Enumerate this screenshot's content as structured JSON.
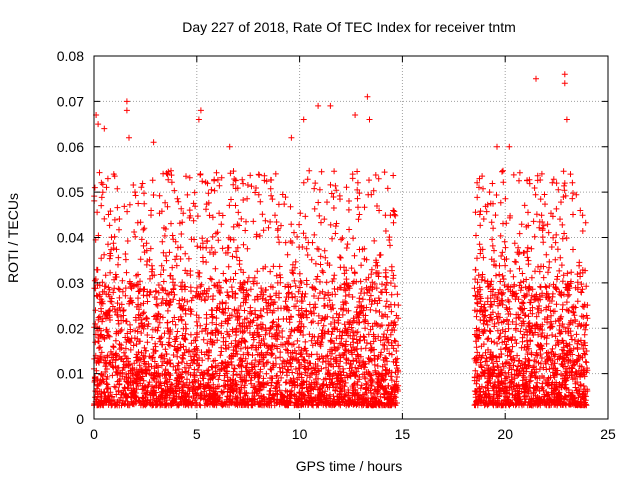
{
  "chart_data": {
    "type": "scatter",
    "title": "Day 227 of 2018, Rate Of TEC Index for receiver tntm",
    "xlabel": "GPS time / hours",
    "ylabel": "ROTI / TECUs",
    "xlim": [
      0,
      25
    ],
    "ylim": [
      0,
      0.08
    ],
    "x_ticks": [
      0,
      5,
      10,
      15,
      20,
      25
    ],
    "y_ticks": [
      0,
      0.01,
      0.02,
      0.03,
      0.04,
      0.05,
      0.06,
      0.07,
      0.08
    ],
    "x_tick_labels": [
      "0",
      "5",
      "10",
      "15",
      "20",
      "25"
    ],
    "y_tick_labels": [
      "0",
      "0.01",
      "0.02",
      "0.03",
      "0.04",
      "0.05",
      "0.06",
      "0.07",
      "0.08"
    ],
    "grid": true,
    "marker": "+",
    "color": "#ff0000",
    "series": [
      {
        "segments": [
          {
            "x_start": 0.0,
            "x_end": 14.8
          },
          {
            "x_start": 18.5,
            "x_end": 24.0
          }
        ],
        "typical_range": [
          0.003,
          0.03
        ],
        "notable_points": [
          {
            "x": 0.1,
            "y": 0.067
          },
          {
            "x": 0.2,
            "y": 0.065
          },
          {
            "x": 0.5,
            "y": 0.064
          },
          {
            "x": 1.6,
            "y": 0.07
          },
          {
            "x": 1.6,
            "y": 0.068
          },
          {
            "x": 1.7,
            "y": 0.062
          },
          {
            "x": 2.9,
            "y": 0.061
          },
          {
            "x": 5.2,
            "y": 0.068
          },
          {
            "x": 5.1,
            "y": 0.066
          },
          {
            "x": 6.6,
            "y": 0.06
          },
          {
            "x": 9.6,
            "y": 0.062
          },
          {
            "x": 10.2,
            "y": 0.066
          },
          {
            "x": 10.9,
            "y": 0.069
          },
          {
            "x": 11.5,
            "y": 0.069
          },
          {
            "x": 12.7,
            "y": 0.067
          },
          {
            "x": 13.3,
            "y": 0.071
          },
          {
            "x": 13.4,
            "y": 0.066
          },
          {
            "x": 19.6,
            "y": 0.06
          },
          {
            "x": 20.2,
            "y": 0.06
          },
          {
            "x": 21.5,
            "y": 0.075
          },
          {
            "x": 22.9,
            "y": 0.076
          },
          {
            "x": 22.9,
            "y": 0.074
          },
          {
            "x": 23.0,
            "y": 0.066
          },
          {
            "x": 22.9,
            "y": 0.052
          }
        ]
      }
    ]
  }
}
